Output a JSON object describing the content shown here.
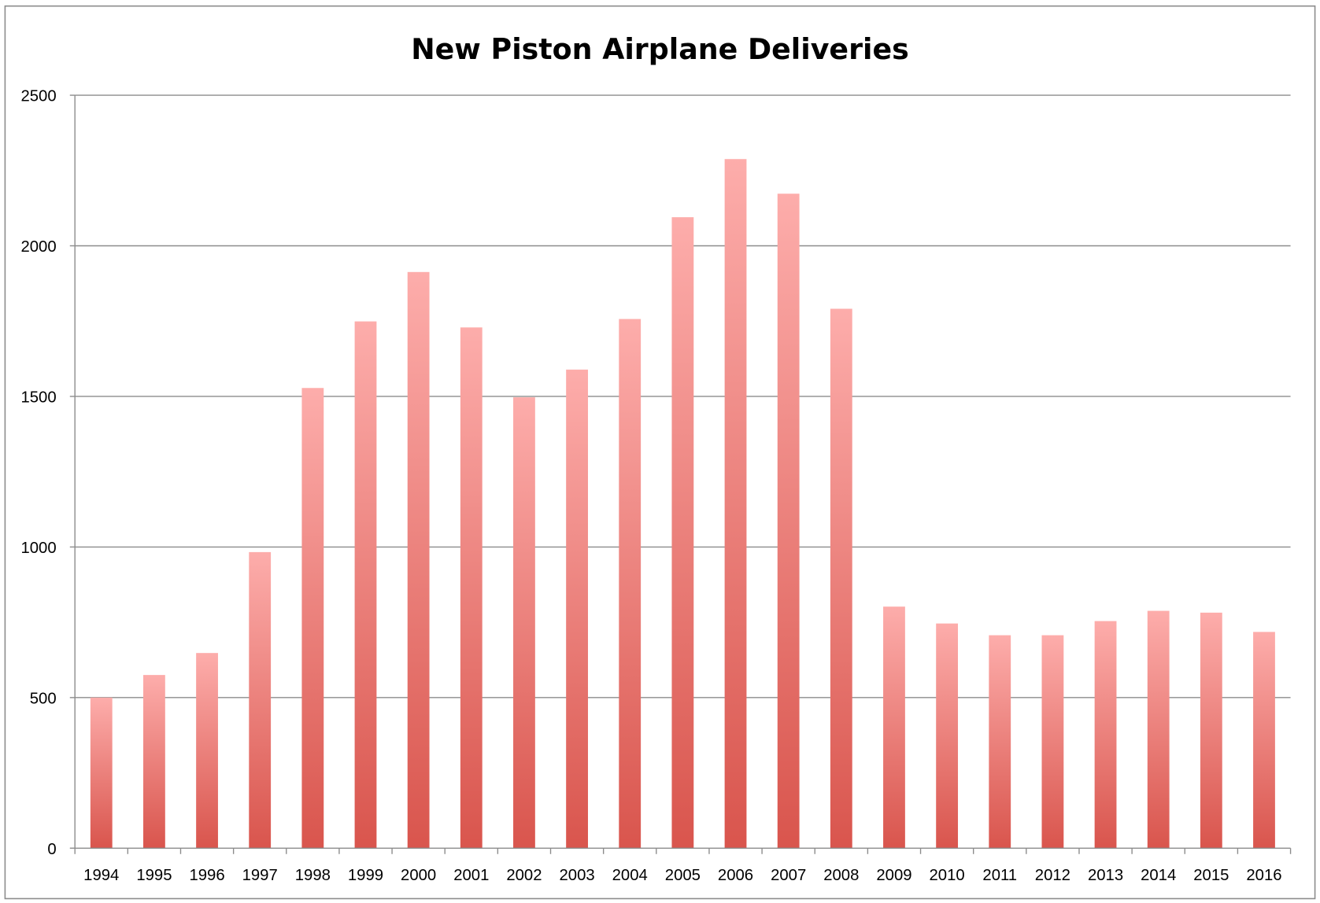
{
  "chart_data": {
    "type": "bar",
    "title": "New Piston Airplane Deliveries",
    "xlabel": "",
    "ylabel": "",
    "categories": [
      "1994",
      "1995",
      "1996",
      "1997",
      "1998",
      "1999",
      "2000",
      "2001",
      "2002",
      "2003",
      "2004",
      "2005",
      "2006",
      "2007",
      "2008",
      "2009",
      "2010",
      "2011",
      "2012",
      "2013",
      "2014",
      "2015",
      "2016"
    ],
    "values": [
      500,
      575,
      648,
      983,
      1528,
      1749,
      1913,
      1729,
      1497,
      1589,
      1757,
      2095,
      2288,
      2173,
      1791,
      802,
      746,
      707,
      707,
      754,
      788,
      782,
      718
    ],
    "ylim": [
      0,
      2500
    ],
    "yticks": [
      "0",
      "500",
      "1000",
      "1500",
      "2000",
      "2500"
    ],
    "grid": true,
    "legend": "none",
    "colors": {
      "bar_top": "#fdadab",
      "bar_bottom": "#d9554d",
      "grid": "#8c8c8c"
    }
  }
}
